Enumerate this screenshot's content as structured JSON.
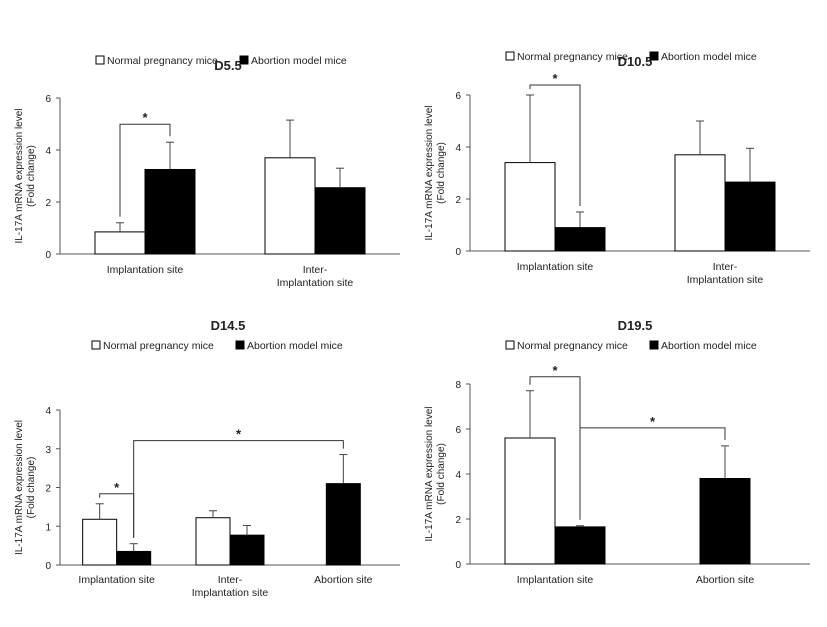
{
  "chart_data": [
    {
      "type": "bar",
      "title": "D5.5",
      "ylabel": "IL-17A mRNA expression level\n(Fold change)",
      "ylim": [
        0,
        6
      ],
      "yticks": [
        0,
        2,
        4,
        6
      ],
      "categories": [
        "Implantation site",
        "Inter-\nImplantation site"
      ],
      "series": [
        {
          "name": "Normal pregnancy mice",
          "values": [
            0.85,
            3.7
          ],
          "errors": [
            0.35,
            1.45
          ]
        },
        {
          "name": "Abortion model mice",
          "values": [
            3.25,
            2.55
          ],
          "errors": [
            1.05,
            0.75
          ]
        }
      ],
      "legend": [
        "Normal pregnancy mice",
        "Abortion model mice"
      ],
      "significance": [
        {
          "label": "*",
          "from": [
            0,
            0
          ],
          "to": [
            0,
            1
          ]
        }
      ]
    },
    {
      "type": "bar",
      "title": "D10.5",
      "ylabel": "IL-17A mRNA expression level\n(Fold change)",
      "ylim": [
        0,
        6
      ],
      "yticks": [
        0,
        2,
        4,
        6
      ],
      "categories": [
        "Implantation site",
        "Inter-\nImplantation site"
      ],
      "series": [
        {
          "name": "Normal pregnancy mice",
          "values": [
            3.4,
            3.7
          ],
          "errors": [
            2.6,
            1.3
          ]
        },
        {
          "name": "Abortion model mice",
          "values": [
            0.9,
            2.65
          ],
          "errors": [
            0.6,
            1.3
          ]
        }
      ],
      "legend": [
        "Normal pregnancy mice",
        "Abortion model mice"
      ],
      "significance": [
        {
          "label": "*",
          "from": [
            0,
            0
          ],
          "to": [
            0,
            1
          ]
        }
      ]
    },
    {
      "type": "bar",
      "title": "D14.5",
      "ylabel": "IL-17A mRNA expression level\n(Fold change)",
      "ylim": [
        0,
        4
      ],
      "yticks": [
        0,
        1,
        2,
        3,
        4
      ],
      "categories": [
        "Implantation site",
        "Inter-\nImplantation site",
        "Abortion site"
      ],
      "series": [
        {
          "name": "Normal pregnancy mice",
          "values": [
            1.18,
            1.22,
            null
          ],
          "errors": [
            0.4,
            0.18,
            null
          ]
        },
        {
          "name": "Abortion model mice",
          "values": [
            0.35,
            0.77,
            2.1
          ],
          "errors": [
            0.2,
            0.25,
            0.75
          ]
        }
      ],
      "legend": [
        "Normal pregnancy mice",
        "Abortion model mice"
      ],
      "significance": [
        {
          "label": "*",
          "from": [
            0,
            0
          ],
          "to": [
            0,
            1
          ]
        },
        {
          "label": "*",
          "from": [
            0,
            1
          ],
          "to": [
            2,
            1
          ]
        }
      ]
    },
    {
      "type": "bar",
      "title": "D19.5",
      "ylabel": "IL-17A mRNA expression level\n(Fold change)",
      "ylim": [
        0,
        8
      ],
      "yticks": [
        0,
        2,
        4,
        6,
        8
      ],
      "categories": [
        "Implantation site",
        "Abortion site"
      ],
      "series": [
        {
          "name": "Normal pregnancy mice",
          "values": [
            5.6,
            null
          ],
          "errors": [
            2.1,
            null
          ]
        },
        {
          "name": "Abortion model mice",
          "values": [
            1.65,
            3.8
          ],
          "errors": [
            0.05,
            1.45
          ]
        }
      ],
      "legend": [
        "Normal pregnancy mice",
        "Abortion model mice"
      ],
      "significance": [
        {
          "label": "*",
          "from": [
            0,
            0
          ],
          "to": [
            0,
            1
          ]
        },
        {
          "label": "*",
          "from": [
            0,
            1
          ],
          "to": [
            1,
            1
          ]
        }
      ]
    }
  ]
}
